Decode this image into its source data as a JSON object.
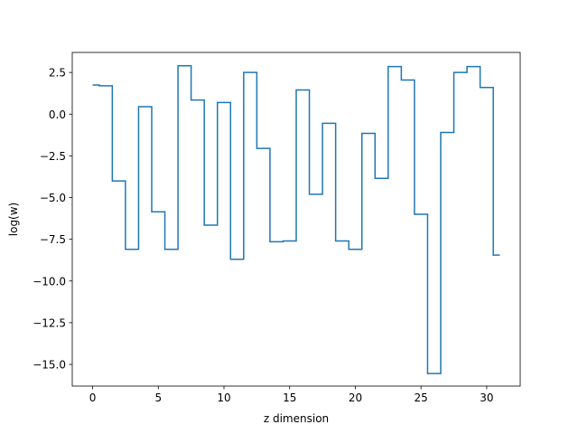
{
  "chart_data": {
    "type": "line",
    "step": "mid",
    "title": "",
    "xlabel": "z dimension",
    "ylabel": "log(w)",
    "xlim": [
      -1.55,
      32.55
    ],
    "ylim": [
      -16.3,
      3.7
    ],
    "xticks": [
      0,
      5,
      10,
      15,
      20,
      25,
      30
    ],
    "yticks": [
      2.5,
      0.0,
      -2.5,
      -5.0,
      -7.5,
      -10.0,
      -12.5,
      -15.0
    ],
    "ytick_labels": [
      "2.5",
      "0.0",
      "−2.5",
      "−5.0",
      "−7.5",
      "−10.0",
      "−12.5",
      "−15.0"
    ],
    "grid": false,
    "line_color": "#1f77b4",
    "series": [
      {
        "x": [
          0,
          1,
          2,
          3,
          4,
          5,
          6,
          7,
          8,
          9,
          10,
          11,
          12,
          13,
          14,
          15,
          16,
          17,
          18,
          19,
          20,
          21,
          22,
          23,
          24,
          25,
          26,
          27,
          28,
          29,
          30,
          31
        ],
        "values": [
          1.75,
          1.7,
          -4.0,
          -8.1,
          0.45,
          -5.85,
          -8.1,
          2.9,
          0.85,
          -6.65,
          0.7,
          -8.7,
          2.5,
          -2.05,
          -7.65,
          -7.6,
          1.45,
          -4.8,
          -0.55,
          -7.6,
          -8.1,
          -1.15,
          -3.85,
          2.85,
          2.05,
          -6.0,
          -15.55,
          -1.1,
          2.5,
          2.85,
          1.6,
          -8.45
        ]
      }
    ]
  }
}
